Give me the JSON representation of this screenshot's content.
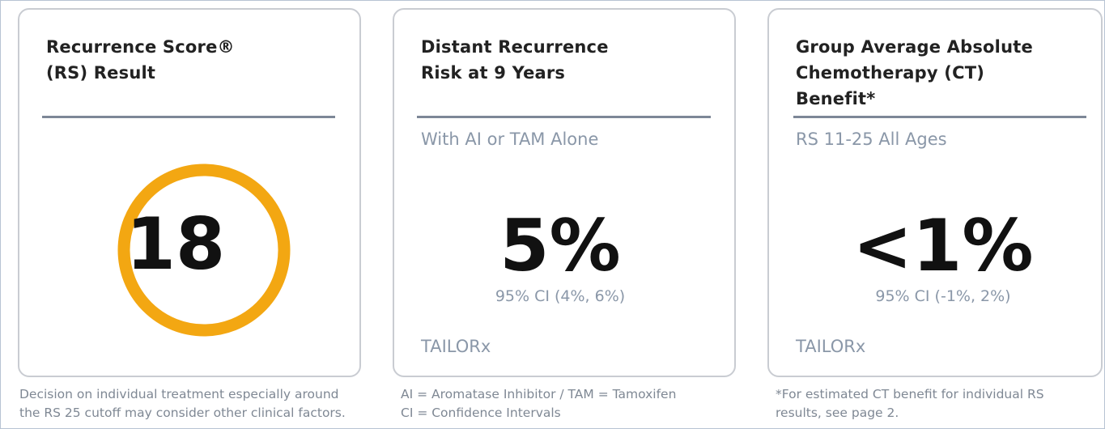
{
  "cards": [
    {
      "title": [
        "Recurrence Score®",
        "(RS) Result"
      ],
      "value": "18",
      "note": [
        "Decision on individual treatment especially around",
        "the RS 25 cutoff may consider other clinical factors."
      ]
    },
    {
      "title": [
        "Distant Recurrence",
        "Risk at 9 Years"
      ],
      "subtitle": "With AI or TAM Alone",
      "value": "5%",
      "ci": "95% CI (4%, 6%)",
      "source": "TAILORx",
      "note": [
        "AI = Aromatase Inhibitor / TAM = Tamoxifen",
        "CI = Confidence Intervals"
      ]
    },
    {
      "title": [
        "Group Average Absolute",
        "Chemotherapy (CT)",
        "Benefit*"
      ],
      "subtitle": "RS 11-25 All Ages",
      "value": "<1%",
      "ci": "95% CI (-1%, 2%)",
      "source": "TAILORx",
      "note": [
        "*For estimated CT benefit for individual RS",
        "results, see page 2."
      ]
    }
  ]
}
